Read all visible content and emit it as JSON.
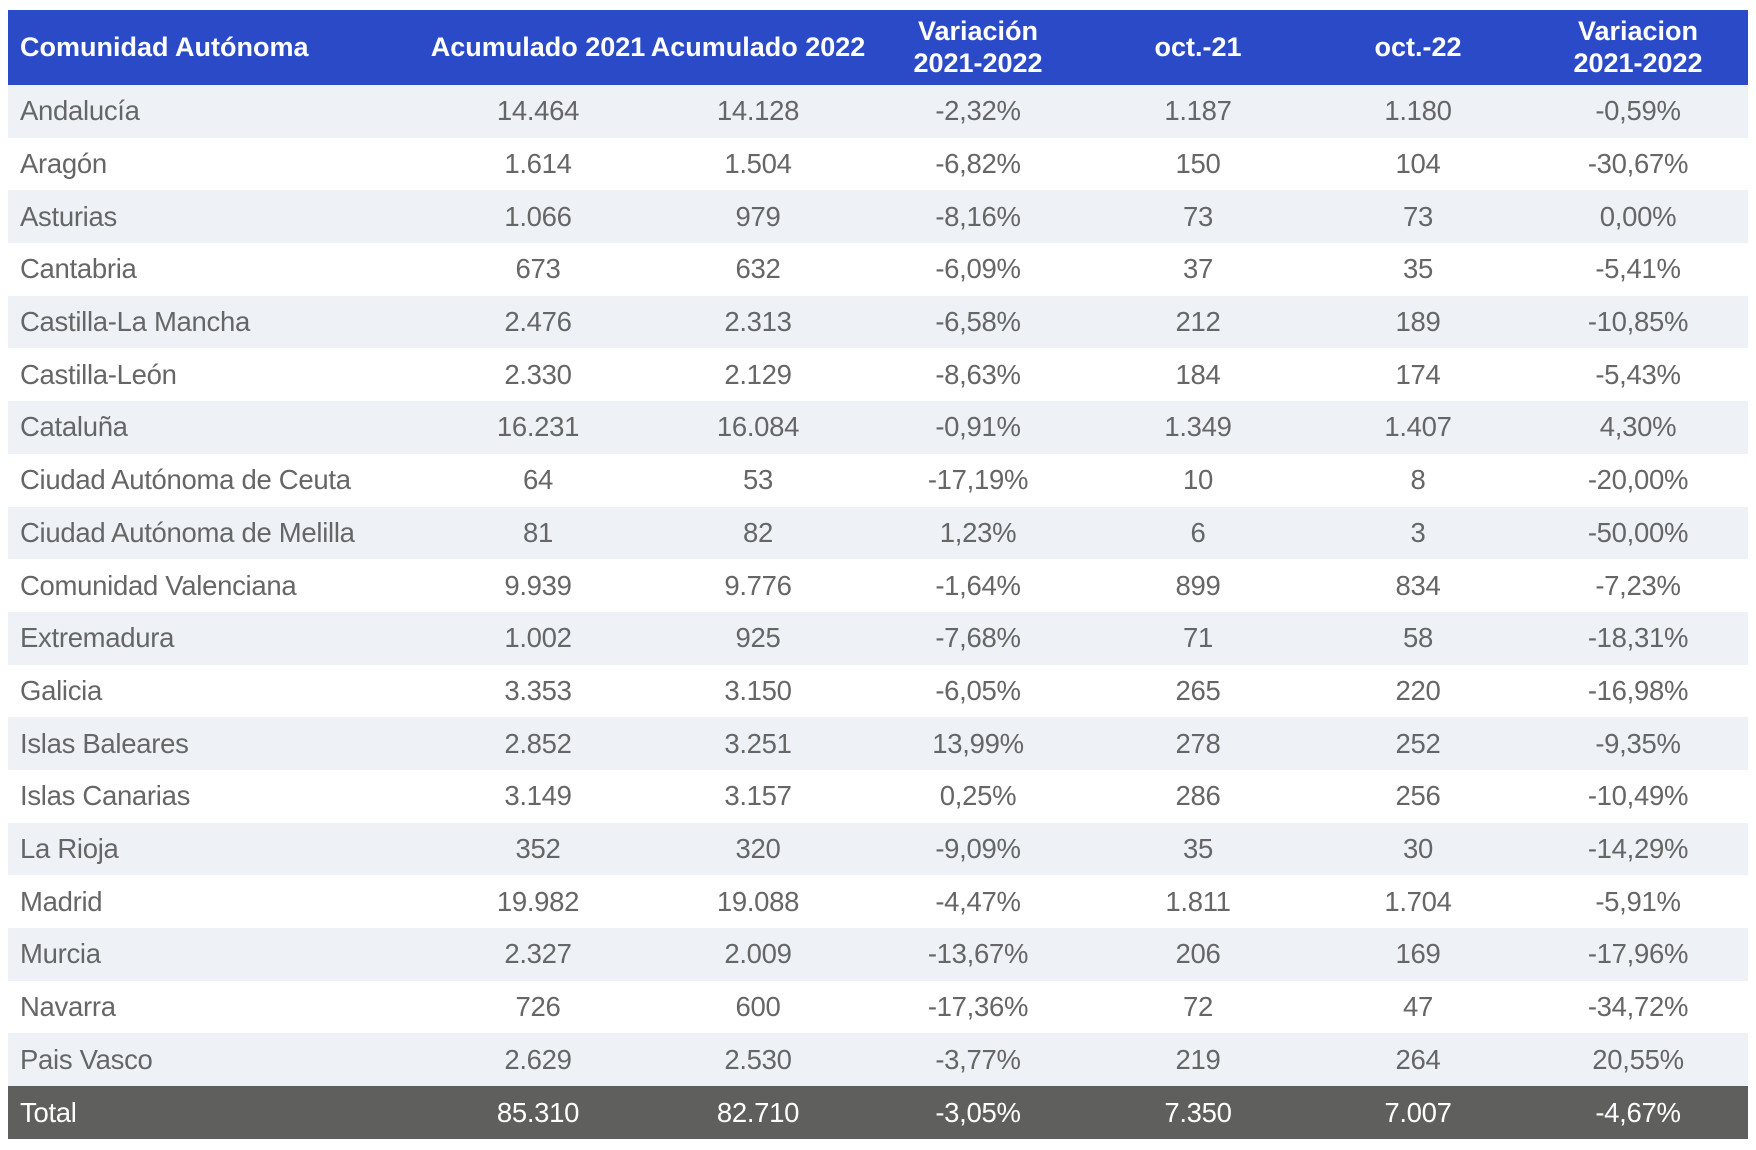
{
  "colors": {
    "header_bg": "#2b4ac7",
    "header_text": "#ffffff",
    "stripe": "#eef2f6",
    "row_white": "#ffffff",
    "total_bg": "#5f5f5e",
    "total_text": "#ffffff",
    "cell_text": "#666666"
  },
  "chart_data": {
    "type": "table",
    "columns": [
      "Comunidad Autónoma",
      "Acumulado 2021",
      "Acumulado 2022",
      "Variación 2021-2022",
      "oct.-21",
      "oct.-22",
      "Variacion 2021-2022"
    ],
    "rows": [
      [
        "Andalucía",
        "14.464",
        "14.128",
        "-2,32%",
        "1.187",
        "1.180",
        "-0,59%"
      ],
      [
        "Aragón",
        "1.614",
        "1.504",
        "-6,82%",
        "150",
        "104",
        "-30,67%"
      ],
      [
        "Asturias",
        "1.066",
        "979",
        "-8,16%",
        "73",
        "73",
        "0,00%"
      ],
      [
        "Cantabria",
        "673",
        "632",
        "-6,09%",
        "37",
        "35",
        "-5,41%"
      ],
      [
        "Castilla-La Mancha",
        "2.476",
        "2.313",
        "-6,58%",
        "212",
        "189",
        "-10,85%"
      ],
      [
        "Castilla-León",
        "2.330",
        "2.129",
        "-8,63%",
        "184",
        "174",
        "-5,43%"
      ],
      [
        "Cataluña",
        "16.231",
        "16.084",
        "-0,91%",
        "1.349",
        "1.407",
        "4,30%"
      ],
      [
        "Ciudad Autónoma de Ceuta",
        "64",
        "53",
        "-17,19%",
        "10",
        "8",
        "-20,00%"
      ],
      [
        "Ciudad Autónoma de Melilla",
        "81",
        "82",
        "1,23%",
        "6",
        "3",
        "-50,00%"
      ],
      [
        "Comunidad Valenciana",
        "9.939",
        "9.776",
        "-1,64%",
        "899",
        "834",
        "-7,23%"
      ],
      [
        "Extremadura",
        "1.002",
        "925",
        "-7,68%",
        "71",
        "58",
        "-18,31%"
      ],
      [
        "Galicia",
        "3.353",
        "3.150",
        "-6,05%",
        "265",
        "220",
        "-16,98%"
      ],
      [
        "Islas Baleares",
        "2.852",
        "3.251",
        "13,99%",
        "278",
        "252",
        "-9,35%"
      ],
      [
        "Islas Canarias",
        "3.149",
        "3.157",
        "0,25%",
        "286",
        "256",
        "-10,49%"
      ],
      [
        "La Rioja",
        "352",
        "320",
        "-9,09%",
        "35",
        "30",
        "-14,29%"
      ],
      [
        "Madrid",
        "19.982",
        "19.088",
        "-4,47%",
        "1.811",
        "1.704",
        "-5,91%"
      ],
      [
        "Murcia",
        "2.327",
        "2.009",
        "-13,67%",
        "206",
        "169",
        "-17,96%"
      ],
      [
        "Navarra",
        "726",
        "600",
        "-17,36%",
        "72",
        "47",
        "-34,72%"
      ],
      [
        "Pais Vasco",
        "2.629",
        "2.530",
        "-3,77%",
        "219",
        "264",
        "20,55%"
      ]
    ],
    "total": [
      "Total",
      "85.310",
      "82.710",
      "-3,05%",
      "7.350",
      "7.007",
      "-4,67%"
    ]
  }
}
